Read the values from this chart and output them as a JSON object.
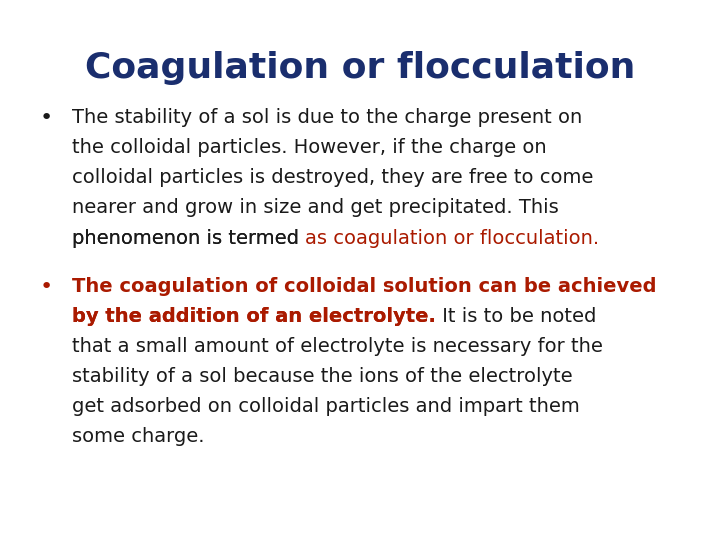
{
  "title": "Coagulation or flocculation",
  "title_color": "#1a2e6e",
  "title_fontsize": 26,
  "background_color": "#ffffff",
  "body_fontsize": 14,
  "bullet_fontsize": 16,
  "title_color_dark": "#1a2e6e",
  "red_color": "#aa1a00",
  "black_color": "#1a1a1a",
  "bullet1_lines": [
    "The stability of a sol is due to the charge present on",
    "the colloidal particles. However, if the charge on",
    "colloidal particles is destroyed, they are free to come",
    "nearer and grow in size and get precipitated. This",
    "phenomenon is termed "
  ],
  "bullet1_red": "as coagulation or flocculation",
  "bullet1_end": ".",
  "bullet2_bold_lines": [
    "The coagulation of colloidal solution can be achieved",
    "by the addition of an electrolyte."
  ],
  "bullet2_normal_inline": " It is to be noted",
  "bullet2_normal_lines": [
    "that a small amount of electrolyte is necessary for the",
    "stability of a sol because the ions of the electrolyte",
    "get adsorbed on colloidal particles and impart them",
    "some charge."
  ]
}
